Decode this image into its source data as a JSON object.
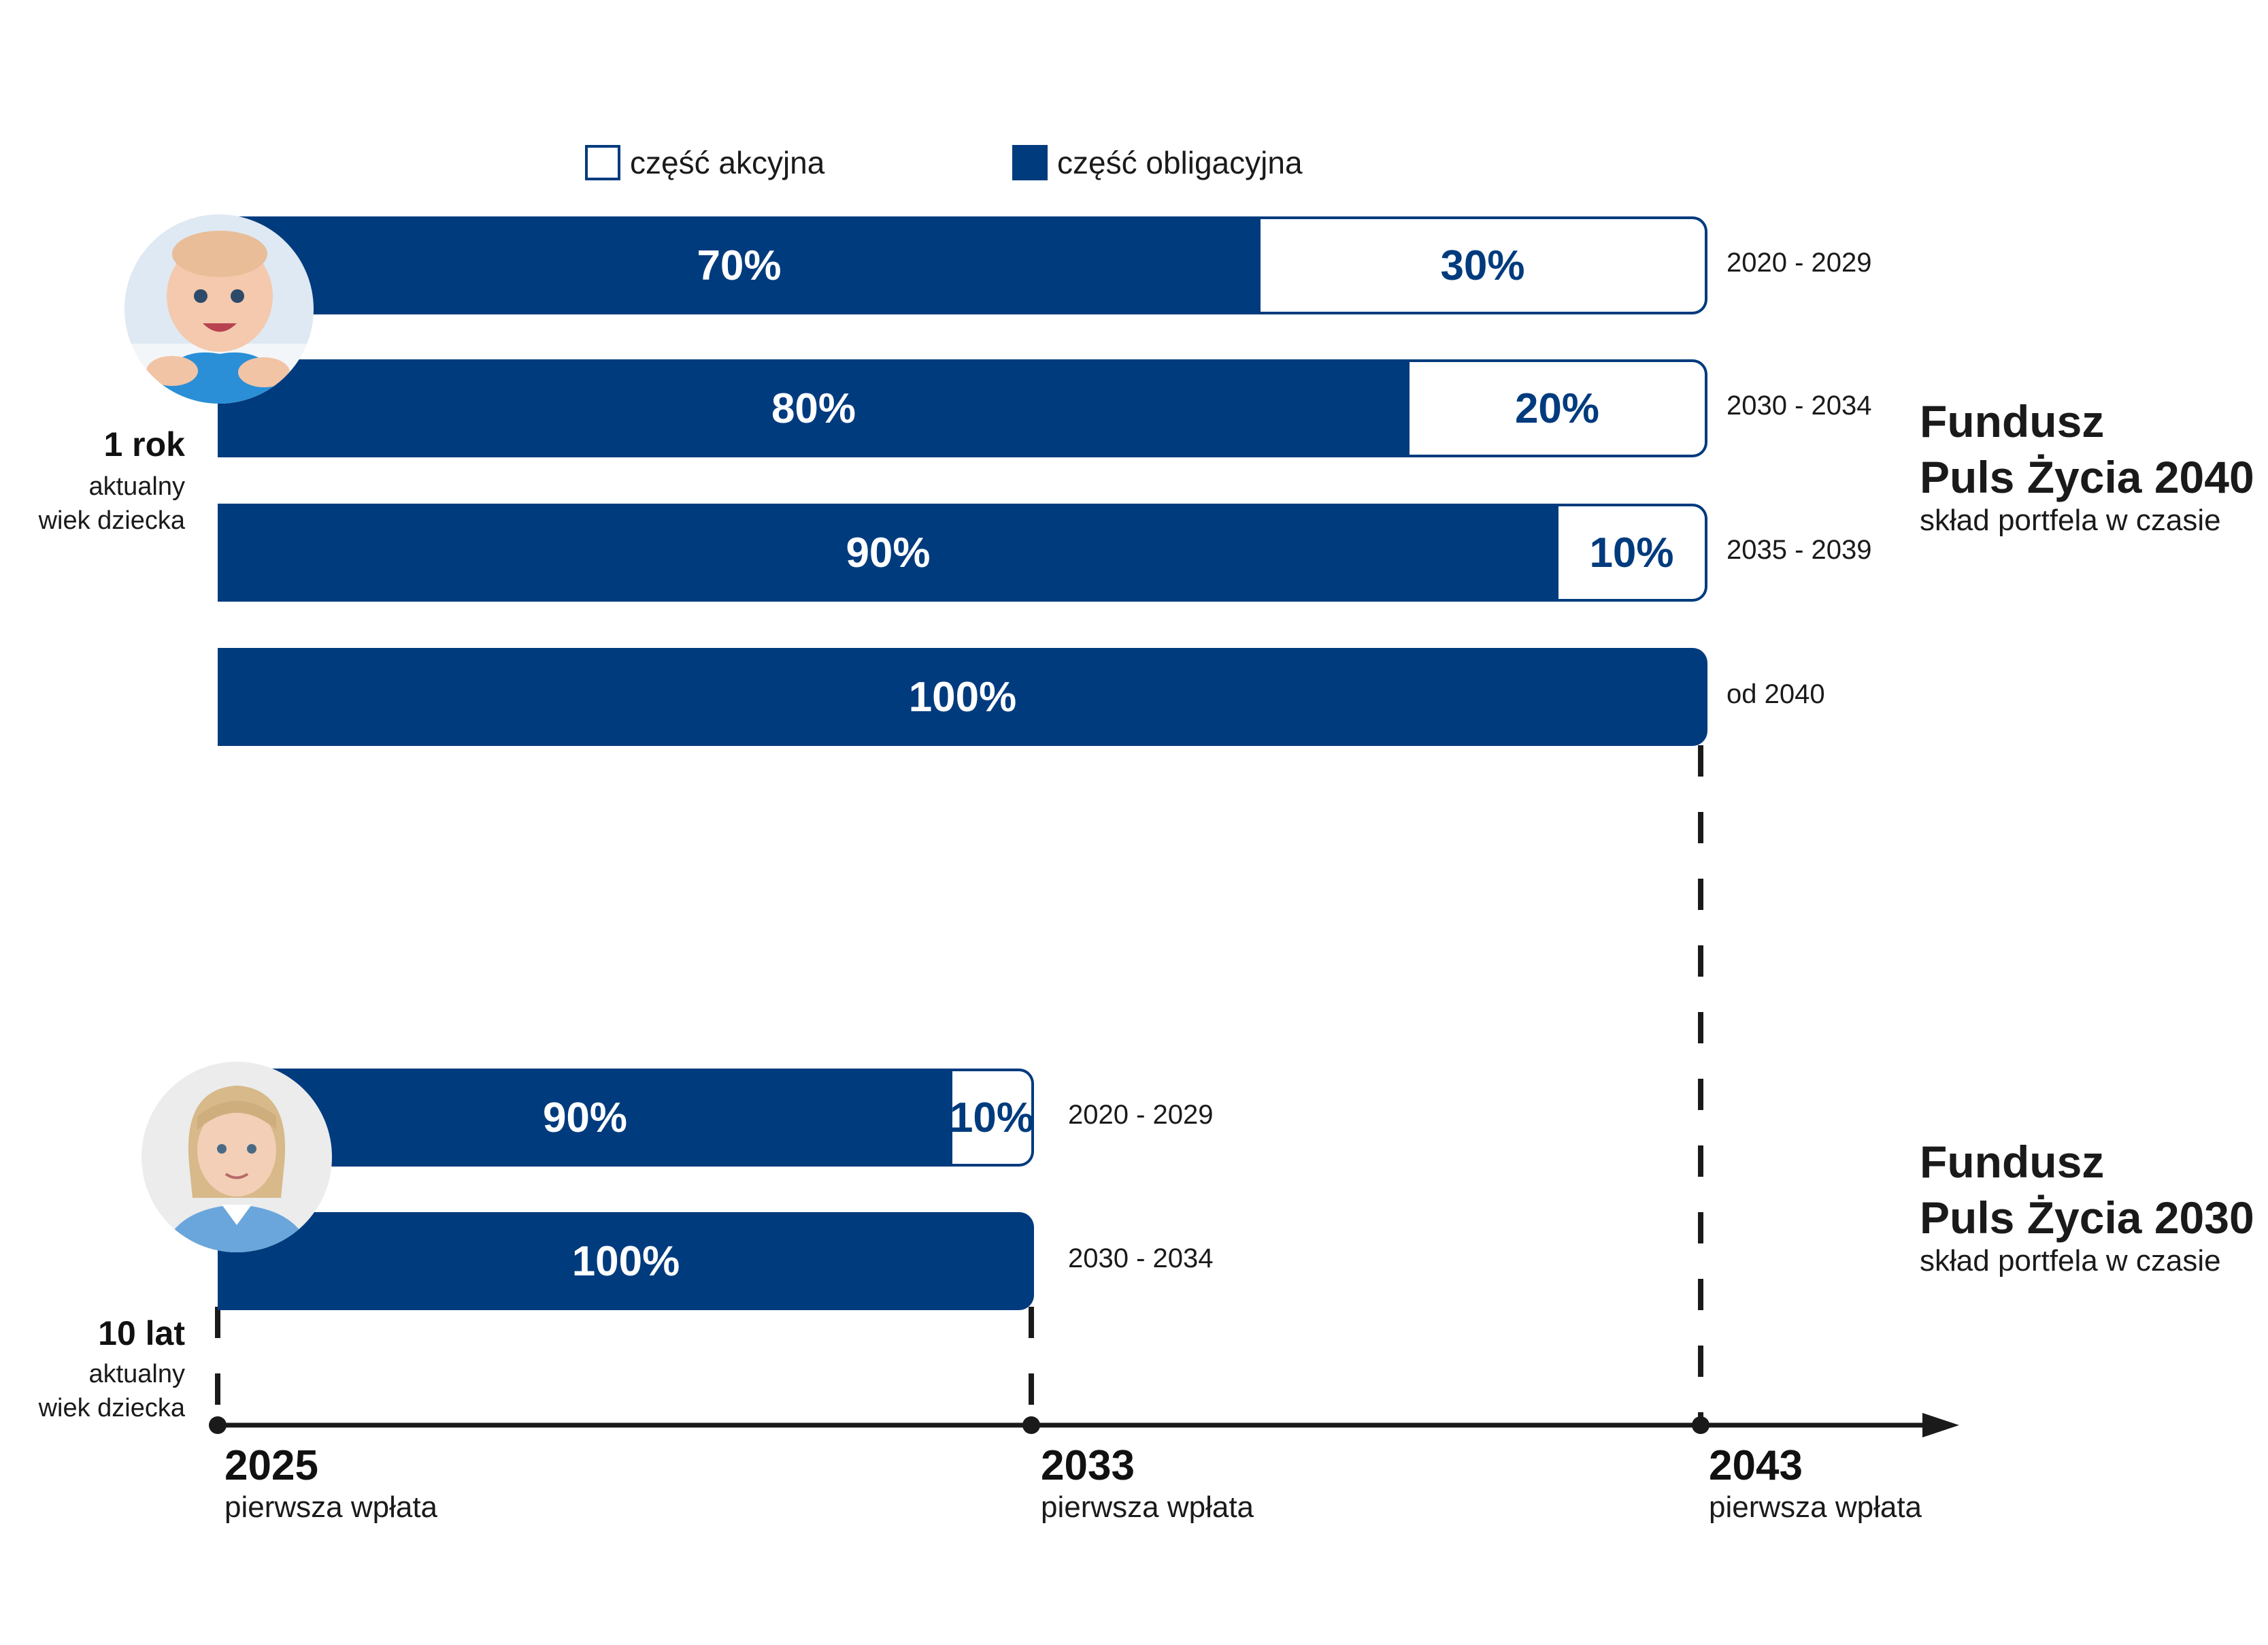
{
  "legend": {
    "equity_label": "część akcyjna",
    "bond_label": "część obligacyjna"
  },
  "colors": {
    "bond": "#003b7e",
    "equity": "#ffffff"
  },
  "funds": [
    {
      "title_line1": "Fundusz",
      "title_line2": "Puls Życia 2040",
      "subtitle": "skład portfela w czasie",
      "age_main": "1 rok",
      "age_line1": "aktualny",
      "age_line2": "wiek dziecka",
      "avatar": "baby-photo"
    },
    {
      "title_line1": "Fundusz",
      "title_line2": "Puls Życia 2030",
      "subtitle": "skład portfela w czasie",
      "age_main": "10 lat",
      "age_line1": "aktualny",
      "age_line2": "wiek dziecka",
      "avatar": "girl-photo"
    }
  ],
  "timeline": {
    "years": [
      "2025",
      "2033",
      "2043"
    ],
    "caption": "pierwsza wpłata"
  },
  "chart_data": [
    {
      "type": "bar",
      "orientation": "horizontal-stacked",
      "categories": [
        "2020 - 2029",
        "2030 - 2034",
        "2035 - 2039",
        "od 2040"
      ],
      "series": [
        {
          "name": "część obligacyjna",
          "values": [
            70,
            80,
            90,
            100
          ],
          "labels": [
            "70%",
            "80%",
            "90%",
            "100%"
          ]
        },
        {
          "name": "część akcyjna",
          "values": [
            30,
            20,
            10,
            0
          ],
          "labels": [
            "30%",
            "20%",
            "10%",
            ""
          ]
        }
      ],
      "unit": "%"
    },
    {
      "type": "bar",
      "orientation": "horizontal-stacked",
      "categories": [
        "2020 - 2029",
        "2030 - 2034"
      ],
      "series": [
        {
          "name": "część obligacyjna",
          "values": [
            90,
            100
          ],
          "labels": [
            "90%",
            "100%"
          ]
        },
        {
          "name": "część akcyjna",
          "values": [
            10,
            0
          ],
          "labels": [
            "10%",
            ""
          ]
        }
      ],
      "unit": "%"
    }
  ]
}
